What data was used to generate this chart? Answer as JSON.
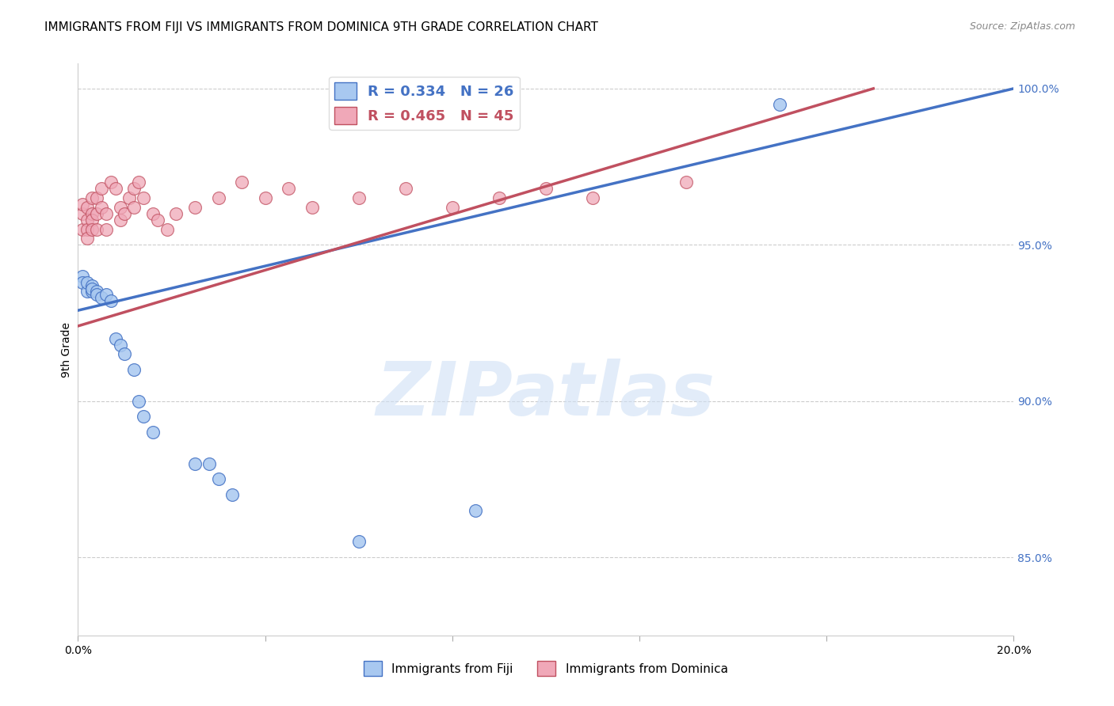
{
  "title": "IMMIGRANTS FROM FIJI VS IMMIGRANTS FROM DOMINICA 9TH GRADE CORRELATION CHART",
  "source": "Source: ZipAtlas.com",
  "ylabel": "9th Grade",
  "watermark": "ZIPatlas",
  "fiji_R": 0.334,
  "fiji_N": 26,
  "dominica_R": 0.465,
  "dominica_N": 45,
  "fiji_color": "#a8c8f0",
  "dominica_color": "#f0a8b8",
  "fiji_line_color": "#4472c4",
  "dominica_line_color": "#c05060",
  "legend_fiji_text": "R = 0.334   N = 26",
  "legend_dominica_text": "R = 0.465   N = 45",
  "xlim": [
    0.0,
    0.2
  ],
  "ylim": [
    0.825,
    1.008
  ],
  "yticks": [
    0.85,
    0.9,
    0.95,
    1.0
  ],
  "ytick_labels": [
    "85.0%",
    "90.0%",
    "95.0%",
    "100.0%"
  ],
  "fiji_x": [
    0.001,
    0.001,
    0.002,
    0.002,
    0.003,
    0.003,
    0.003,
    0.004,
    0.004,
    0.005,
    0.006,
    0.007,
    0.008,
    0.009,
    0.01,
    0.012,
    0.013,
    0.014,
    0.016,
    0.025,
    0.028,
    0.03,
    0.033,
    0.06,
    0.085,
    0.15
  ],
  "fiji_y": [
    0.94,
    0.938,
    0.935,
    0.938,
    0.935,
    0.937,
    0.936,
    0.935,
    0.934,
    0.933,
    0.934,
    0.932,
    0.92,
    0.918,
    0.915,
    0.91,
    0.9,
    0.895,
    0.89,
    0.88,
    0.88,
    0.875,
    0.87,
    0.855,
    0.865,
    0.995
  ],
  "dominica_x": [
    0.001,
    0.001,
    0.001,
    0.002,
    0.002,
    0.002,
    0.002,
    0.003,
    0.003,
    0.003,
    0.003,
    0.004,
    0.004,
    0.004,
    0.005,
    0.005,
    0.006,
    0.006,
    0.007,
    0.008,
    0.009,
    0.009,
    0.01,
    0.011,
    0.012,
    0.012,
    0.013,
    0.014,
    0.016,
    0.017,
    0.019,
    0.021,
    0.025,
    0.03,
    0.035,
    0.04,
    0.045,
    0.05,
    0.06,
    0.07,
    0.08,
    0.09,
    0.1,
    0.11,
    0.13
  ],
  "dominica_y": [
    0.96,
    0.963,
    0.955,
    0.962,
    0.958,
    0.955,
    0.952,
    0.965,
    0.96,
    0.958,
    0.955,
    0.965,
    0.96,
    0.955,
    0.968,
    0.962,
    0.96,
    0.955,
    0.97,
    0.968,
    0.962,
    0.958,
    0.96,
    0.965,
    0.962,
    0.968,
    0.97,
    0.965,
    0.96,
    0.958,
    0.955,
    0.96,
    0.962,
    0.965,
    0.97,
    0.965,
    0.968,
    0.962,
    0.965,
    0.968,
    0.962,
    0.965,
    0.968,
    0.965,
    0.97
  ],
  "grid_color": "#cccccc",
  "title_fontsize": 11,
  "axis_label_fontsize": 10,
  "tick_fontsize": 10,
  "watermark_color": "#cfe0f5",
  "watermark_fontsize": 68,
  "background_color": "#ffffff"
}
